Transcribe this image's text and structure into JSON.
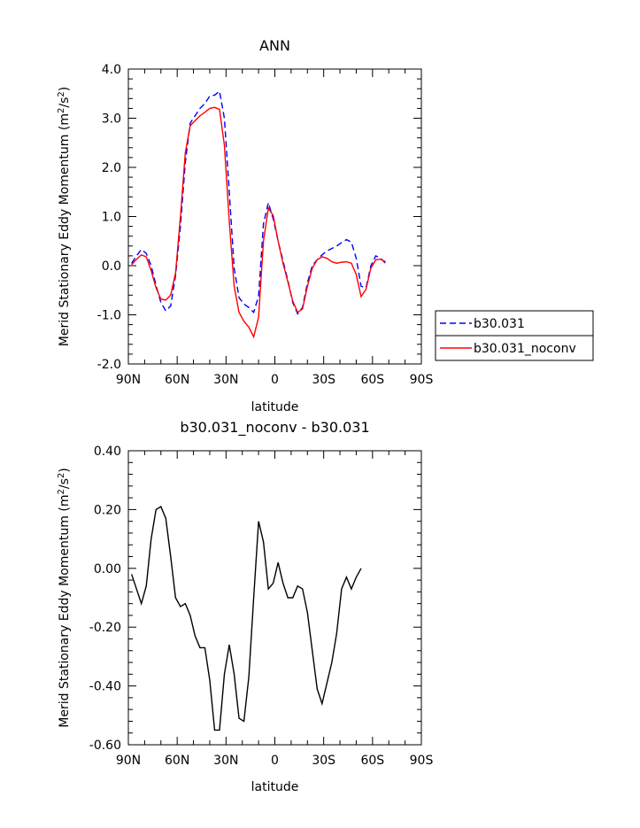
{
  "chart_data": [
    {
      "type": "line",
      "title": "ANN",
      "xlabel": "latitude",
      "ylabel": "Merid Stationary Eddy Momentum (m²/s²)",
      "xlim": [
        90,
        -90
      ],
      "ylim": [
        -2.0,
        4.0
      ],
      "x_ticks": [
        90,
        60,
        30,
        0,
        -30,
        -60,
        -90
      ],
      "x_tick_labels": [
        "90N",
        "60N",
        "30N",
        "0",
        "30S",
        "60S",
        "90S"
      ],
      "y_ticks": [
        -2.0,
        -1.0,
        0.0,
        1.0,
        2.0,
        3.0,
        4.0
      ],
      "y_tick_labels": [
        "-2.0",
        "-1.0",
        "0.0",
        "1.0",
        "2.0",
        "3.0",
        "4.0"
      ],
      "legend": {
        "placement": "right",
        "entries": [
          "b30.031",
          "b30.031_noconv"
        ]
      },
      "series": [
        {
          "name": "b30.031",
          "color": "#0000ff",
          "dash": "dashed",
          "points": [
            [
              88,
              0.05
            ],
            [
              85,
              0.2
            ],
            [
              82,
              0.33
            ],
            [
              79,
              0.25
            ],
            [
              76,
              0.0
            ],
            [
              73,
              -0.4
            ],
            [
              70,
              -0.75
            ],
            [
              67,
              -0.92
            ],
            [
              64,
              -0.82
            ],
            [
              61,
              -0.2
            ],
            [
              58,
              0.8
            ],
            [
              55,
              2.1
            ],
            [
              52,
              2.9
            ],
            [
              49,
              3.05
            ],
            [
              46,
              3.2
            ],
            [
              43,
              3.3
            ],
            [
              40,
              3.45
            ],
            [
              37,
              3.47
            ],
            [
              34,
              3.55
            ],
            [
              31,
              3.0
            ],
            [
              28,
              1.5
            ],
            [
              25,
              -0.05
            ],
            [
              22,
              -0.65
            ],
            [
              19,
              -0.78
            ],
            [
              16,
              -0.85
            ],
            [
              13,
              -0.95
            ],
            [
              10,
              -0.62
            ],
            [
              7,
              0.85
            ],
            [
              4,
              1.28
            ],
            [
              1,
              0.95
            ],
            [
              -2,
              0.5
            ],
            [
              -5,
              0.1
            ],
            [
              -8,
              -0.3
            ],
            [
              -11,
              -0.75
            ],
            [
              -14,
              -0.98
            ],
            [
              -17,
              -0.85
            ],
            [
              -20,
              -0.35
            ],
            [
              -23,
              0.0
            ],
            [
              -26,
              0.12
            ],
            [
              -29,
              0.22
            ],
            [
              -32,
              0.3
            ],
            [
              -35,
              0.35
            ],
            [
              -38,
              0.4
            ],
            [
              -41,
              0.47
            ],
            [
              -44,
              0.53
            ],
            [
              -47,
              0.48
            ],
            [
              -50,
              0.15
            ],
            [
              -53,
              -0.42
            ],
            [
              -56,
              -0.45
            ],
            [
              -59,
              0.0
            ],
            [
              -62,
              0.2
            ],
            [
              -65,
              0.15
            ],
            [
              -68,
              0.05
            ]
          ]
        },
        {
          "name": "b30.031_noconv",
          "color": "#ff0000",
          "dash": "solid",
          "points": [
            [
              88,
              0.02
            ],
            [
              85,
              0.13
            ],
            [
              82,
              0.22
            ],
            [
              79,
              0.18
            ],
            [
              76,
              -0.1
            ],
            [
              73,
              -0.45
            ],
            [
              70,
              -0.68
            ],
            [
              67,
              -0.7
            ],
            [
              64,
              -0.6
            ],
            [
              61,
              -0.15
            ],
            [
              58,
              1.0
            ],
            [
              55,
              2.3
            ],
            [
              52,
              2.85
            ],
            [
              49,
              2.95
            ],
            [
              46,
              3.05
            ],
            [
              43,
              3.12
            ],
            [
              40,
              3.2
            ],
            [
              37,
              3.22
            ],
            [
              34,
              3.18
            ],
            [
              31,
              2.45
            ],
            [
              28,
              0.9
            ],
            [
              25,
              -0.42
            ],
            [
              22,
              -0.95
            ],
            [
              19,
              -1.13
            ],
            [
              16,
              -1.25
            ],
            [
              13,
              -1.45
            ],
            [
              10,
              -1.05
            ],
            [
              7,
              0.5
            ],
            [
              4,
              1.17
            ],
            [
              1,
              1.02
            ],
            [
              -2,
              0.5
            ],
            [
              -5,
              0.05
            ],
            [
              -8,
              -0.33
            ],
            [
              -11,
              -0.72
            ],
            [
              -14,
              -0.95
            ],
            [
              -17,
              -0.88
            ],
            [
              -20,
              -0.42
            ],
            [
              -23,
              -0.05
            ],
            [
              -26,
              0.12
            ],
            [
              -29,
              0.18
            ],
            [
              -32,
              0.15
            ],
            [
              -35,
              0.08
            ],
            [
              -38,
              0.05
            ],
            [
              -41,
              0.07
            ],
            [
              -44,
              0.08
            ],
            [
              -47,
              0.05
            ],
            [
              -50,
              -0.18
            ],
            [
              -53,
              -0.63
            ],
            [
              -56,
              -0.48
            ],
            [
              -59,
              -0.05
            ],
            [
              -62,
              0.12
            ],
            [
              -65,
              0.13
            ],
            [
              -68,
              0.08
            ]
          ]
        }
      ]
    },
    {
      "type": "line",
      "title": "b30.031_noconv - b30.031",
      "xlabel": "latitude",
      "ylabel": "Merid Stationary Eddy Momentum (m²/s²)",
      "xlim": [
        90,
        -90
      ],
      "ylim": [
        -0.6,
        0.4
      ],
      "x_ticks": [
        90,
        60,
        30,
        0,
        -30,
        -60,
        -90
      ],
      "x_tick_labels": [
        "90N",
        "60N",
        "30N",
        "0",
        "30S",
        "60S",
        "90S"
      ],
      "y_ticks": [
        -0.6,
        -0.4,
        -0.2,
        0.0,
        0.2,
        0.4
      ],
      "y_tick_labels": [
        "-0.60",
        "-0.40",
        "-0.20",
        "0.00",
        "0.20",
        "0.40"
      ],
      "series": [
        {
          "color": "#000000",
          "dash": "solid",
          "points": [
            [
              88,
              -0.02
            ],
            [
              85,
              -0.07
            ],
            [
              82,
              -0.12
            ],
            [
              79,
              -0.06
            ],
            [
              76,
              0.1
            ],
            [
              73,
              0.2
            ],
            [
              70,
              0.21
            ],
            [
              67,
              0.17
            ],
            [
              64,
              0.04
            ],
            [
              61,
              -0.1
            ],
            [
              58,
              -0.13
            ],
            [
              55,
              -0.12
            ],
            [
              52,
              -0.16
            ],
            [
              49,
              -0.23
            ],
            [
              46,
              -0.27
            ],
            [
              43,
              -0.27
            ],
            [
              40,
              -0.38
            ],
            [
              37,
              -0.55
            ],
            [
              34,
              -0.55
            ],
            [
              31,
              -0.36
            ],
            [
              28,
              -0.26
            ],
            [
              25,
              -0.36
            ],
            [
              22,
              -0.51
            ],
            [
              19,
              -0.52
            ],
            [
              16,
              -0.37
            ],
            [
              13,
              -0.1
            ],
            [
              10,
              0.16
            ],
            [
              7,
              0.09
            ],
            [
              4,
              -0.07
            ],
            [
              1,
              -0.05
            ],
            [
              -2,
              0.02
            ],
            [
              -5,
              -0.05
            ],
            [
              -8,
              -0.1
            ],
            [
              -11,
              -0.1
            ],
            [
              -14,
              -0.06
            ],
            [
              -17,
              -0.07
            ],
            [
              -20,
              -0.15
            ],
            [
              -23,
              -0.28
            ],
            [
              -26,
              -0.41
            ],
            [
              -29,
              -0.46
            ],
            [
              -32,
              -0.39
            ],
            [
              -35,
              -0.32
            ],
            [
              -38,
              -0.22
            ],
            [
              -41,
              -0.07
            ],
            [
              -44,
              -0.03
            ],
            [
              -47,
              -0.07
            ],
            [
              -50,
              -0.03
            ],
            [
              -53,
              0.0
            ]
          ]
        }
      ]
    }
  ]
}
